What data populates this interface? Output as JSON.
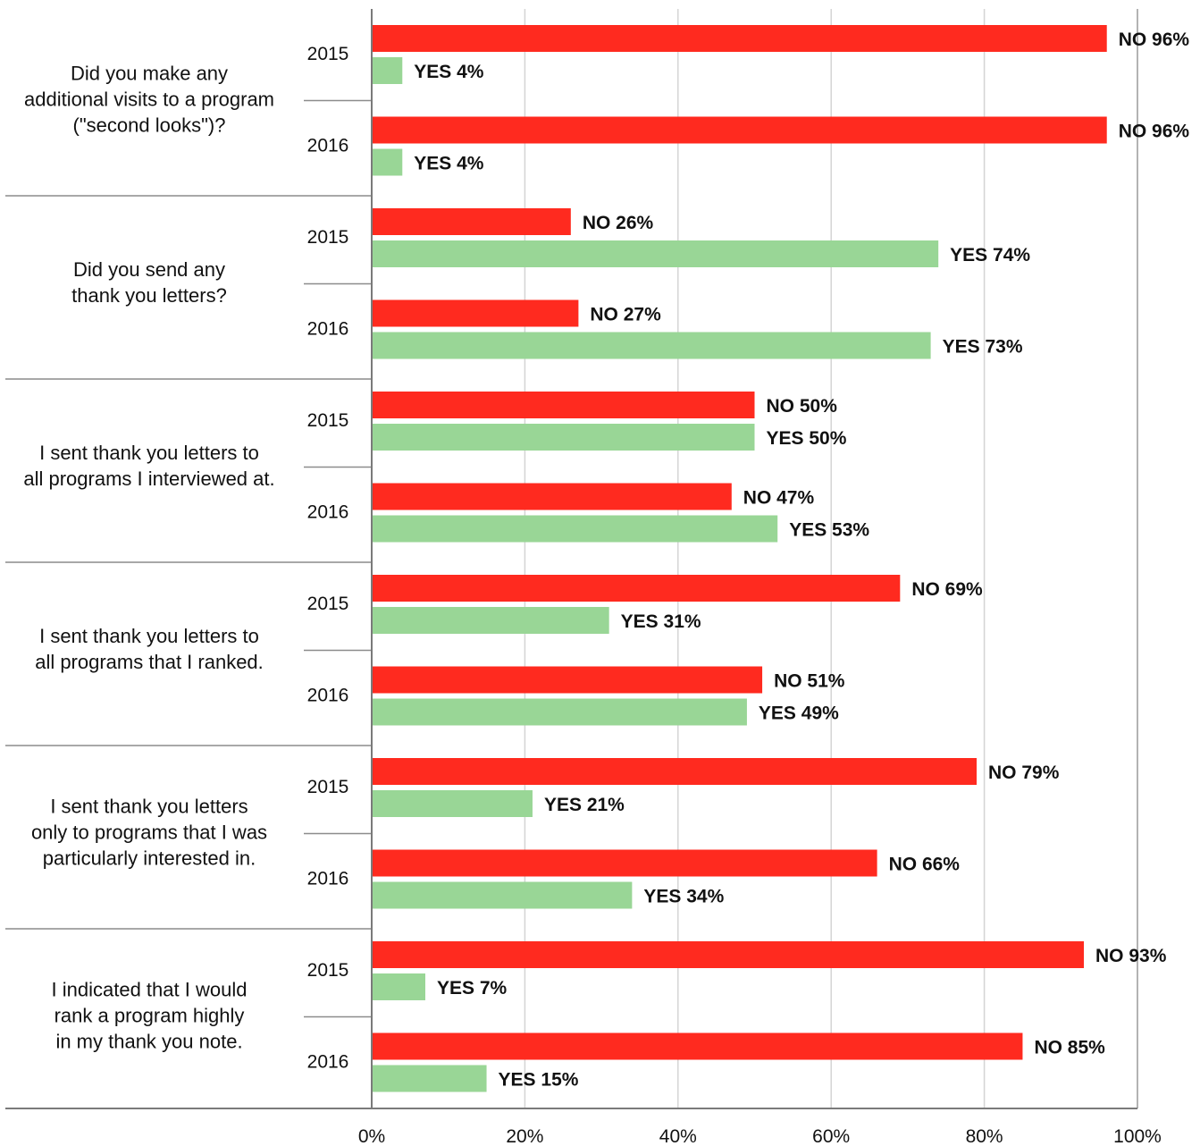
{
  "chart_data": {
    "type": "bar",
    "orientation": "horizontal",
    "title": "",
    "xlabel": "",
    "ylabel": "",
    "xlim": [
      0,
      100
    ],
    "x_ticks": [
      "0%",
      "20%",
      "40%",
      "60%",
      "80%",
      "100%"
    ],
    "grid": "vertical",
    "legend": "none",
    "colors": {
      "NO": "#ff2a1f",
      "YES": "#99d696"
    },
    "years": [
      "2015",
      "2016"
    ],
    "series_names": [
      "NO",
      "YES"
    ],
    "questions": [
      {
        "lines": [
          "Did you make any",
          "additional visits to a program",
          "(\"second looks\")?"
        ],
        "groups": [
          {
            "year": "2015",
            "no": 96,
            "yes": 4,
            "no_label": "NO 96%",
            "yes_label": "YES 4%"
          },
          {
            "year": "2016",
            "no": 96,
            "yes": 4,
            "no_label": "NO 96%",
            "yes_label": "YES 4%"
          }
        ]
      },
      {
        "lines": [
          "Did you send any",
          "thank you letters?"
        ],
        "groups": [
          {
            "year": "2015",
            "no": 26,
            "yes": 74,
            "no_label": "NO 26%",
            "yes_label": "YES 74%"
          },
          {
            "year": "2016",
            "no": 27,
            "yes": 73,
            "no_label": "NO 27%",
            "yes_label": "YES 73%"
          }
        ]
      },
      {
        "lines": [
          "I sent thank you letters to",
          "all programs I interviewed at."
        ],
        "groups": [
          {
            "year": "2015",
            "no": 50,
            "yes": 50,
            "no_label": "NO 50%",
            "yes_label": "YES 50%"
          },
          {
            "year": "2016",
            "no": 47,
            "yes": 53,
            "no_label": "NO 47%",
            "yes_label": "YES 53%"
          }
        ]
      },
      {
        "lines": [
          "I sent thank you letters to",
          "all programs that I ranked."
        ],
        "groups": [
          {
            "year": "2015",
            "no": 69,
            "yes": 31,
            "no_label": "NO 69%",
            "yes_label": "YES 31%"
          },
          {
            "year": "2016",
            "no": 51,
            "yes": 49,
            "no_label": "NO 51%",
            "yes_label": "YES 49%"
          }
        ]
      },
      {
        "lines": [
          "I sent thank you letters",
          "only to programs that I was",
          "particularly interested in."
        ],
        "groups": [
          {
            "year": "2015",
            "no": 79,
            "yes": 21,
            "no_label": "NO 79%",
            "yes_label": "YES 21%"
          },
          {
            "year": "2016",
            "no": 66,
            "yes": 34,
            "no_label": "NO 66%",
            "yes_label": "YES 34%"
          }
        ]
      },
      {
        "lines": [
          "I indicated that I would",
          "rank a program highly",
          "in my thank you note."
        ],
        "groups": [
          {
            "year": "2015",
            "no": 93,
            "yes": 7,
            "no_label": "NO 93%",
            "yes_label": "YES 7%"
          },
          {
            "year": "2016",
            "no": 85,
            "yes": 15,
            "no_label": "NO 85%",
            "yes_label": "YES 15%"
          }
        ]
      }
    ]
  }
}
